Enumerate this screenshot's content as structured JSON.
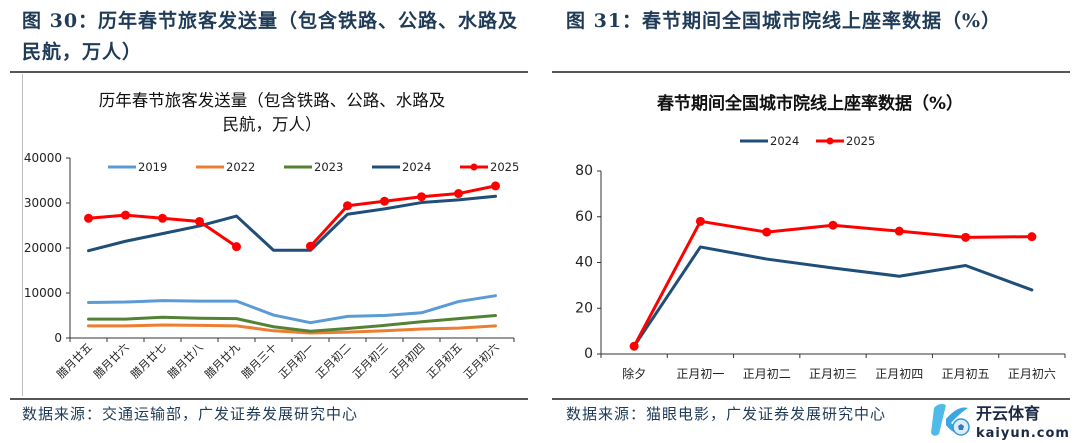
{
  "figures": [
    {
      "label": "图 30：历年春节旅客发送量（包含铁路、公路、水路及民航，万人）",
      "source": "数据来源：交通运输部，广发证券发展研究中心"
    },
    {
      "label": "图 31：春节期间全国城市院线上座率数据（%）",
      "source": "数据来源：猫眼电影，广发证券发展研究中心"
    }
  ],
  "watermark": {
    "brand": "开云体育",
    "url": "kaiyun.com"
  },
  "chart_data": [
    {
      "type": "line",
      "title_lines": [
        "历年春节旅客发送量（包含铁路、公路、水路及",
        "民航，万人）"
      ],
      "xlabel": "",
      "ylabel": "",
      "ylim": [
        0,
        40000
      ],
      "yticks": [
        0,
        10000,
        20000,
        30000,
        40000
      ],
      "grid": false,
      "legend_position": "top",
      "categories": [
        "腊月廿五",
        "腊月廿六",
        "腊月廿七",
        "腊月廿八",
        "腊月廿九",
        "腊月三十",
        "正月初一",
        "正月初二",
        "正月初三",
        "正月初四",
        "正月初五",
        "正月初六"
      ],
      "series": [
        {
          "name": "2019",
          "color": "#5b9bd5",
          "markers": false,
          "values": [
            7900,
            8000,
            8300,
            8200,
            8200,
            5100,
            3400,
            4800,
            5000,
            5600,
            8100,
            9400
          ]
        },
        {
          "name": "2022",
          "color": "#ed7d31",
          "markers": false,
          "values": [
            2700,
            2700,
            2900,
            2800,
            2700,
            1600,
            1100,
            1300,
            1600,
            2000,
            2200,
            2700
          ]
        },
        {
          "name": "2023",
          "color": "#548235",
          "markers": false,
          "values": [
            4200,
            4200,
            4600,
            4400,
            4300,
            2500,
            1500,
            2100,
            2800,
            3600,
            4300,
            5000
          ]
        },
        {
          "name": "2024",
          "color": "#1f4e79",
          "markers": false,
          "values": [
            19400,
            21500,
            23200,
            24900,
            27100,
            19500,
            19500,
            27500,
            28700,
            30100,
            30700,
            31500
          ]
        },
        {
          "name": "2025",
          "color": "#ff0000",
          "markers": true,
          "values": [
            26600,
            27300,
            26600,
            25900,
            20300,
            null,
            20400,
            29400,
            30400,
            31400,
            32100,
            33800
          ]
        }
      ]
    },
    {
      "type": "line",
      "title_lines": [
        "春节期间全国城市院线上座率数据（%）"
      ],
      "xlabel": "",
      "ylabel": "",
      "ylim": [
        0,
        80
      ],
      "yticks": [
        0,
        20,
        40,
        60,
        80
      ],
      "grid": false,
      "legend_position": "top",
      "categories": [
        "除夕",
        "正月初一",
        "正月初二",
        "正月初三",
        "正月初四",
        "正月初五",
        "正月初六"
      ],
      "series": [
        {
          "name": "2024",
          "color": "#1f4e79",
          "markers": false,
          "values": [
            3.4,
            46.8,
            41.5,
            37.6,
            34.0,
            38.7,
            28.0
          ]
        },
        {
          "name": "2025",
          "color": "#ff0000",
          "markers": true,
          "values": [
            3.4,
            58.0,
            53.3,
            56.3,
            53.7,
            51.0,
            51.3
          ]
        }
      ]
    }
  ]
}
